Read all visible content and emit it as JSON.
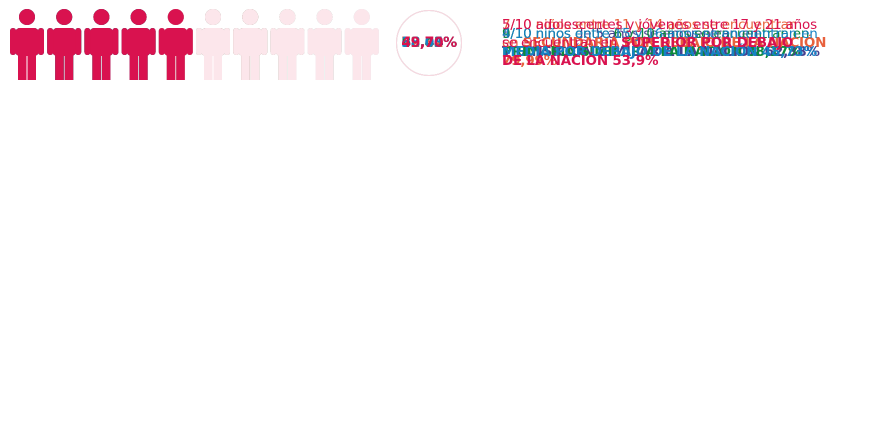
{
  "rows": [
    {
      "percent": "63,44%",
      "color": "#463f8f",
      "ring": "#c9c6e2",
      "icons": [
        "#463f8f",
        "#463f8f",
        "#463f8f",
        "#463f8f",
        "#463f8f",
        "#463f8f",
        "#7d78b7",
        "#c3c0de",
        "#c3c0de",
        "#c3c0de"
      ],
      "lines": [
        [
          {
            "normal": "6/10 niños de 5 años se encuentran en"
          }
        ],
        [
          {
            "strong": "TRANSICIÓN SIMILAR A LA NACIÓN 62,38%"
          }
        ]
      ]
    },
    {
      "percent": "88,43%",
      "color": "#0d8a3c",
      "ring": "#c6e3cd",
      "icons": [
        "#0d8a3c",
        "#0d8a3c",
        "#0d8a3c",
        "#0d8a3c",
        "#0d8a3c",
        "#0d8a3c",
        "#0d8a3c",
        "#0d8a3c",
        "#0d8a3c",
        "#c6e3cd"
      ],
      "lines": [
        [
          {
            "normal": "9/10 niños entre 6 y 10 años se encuentran en"
          }
        ],
        [
          {
            "strong": "PRIMARIA SIMILAR A LA NACIÓN 88,17%"
          }
        ]
      ]
    },
    {
      "percent": "72,82%",
      "color": "#e8613d",
      "ring": "#f8d9ce",
      "icons": [
        "#e8613d",
        "#e8613d",
        "#e8613d",
        "#e8613d",
        "#e8613d",
        "#e8613d",
        "#e8613d",
        "#f3b097",
        "#fdebe5",
        "#fdebe5"
      ],
      "lines": [
        [
          {
            "normal": "7/10 niños entre 11 y 14 años se encuentran"
          }
        ],
        [
          {
            "normal": "en "
          },
          {
            "strong": "SECUNDARIA POR DEBAJO DE LA NACIÓN"
          }
        ],
        [
          {
            "strong": "79,99%"
          }
        ]
      ]
    },
    {
      "percent": "38,03%",
      "color": "#1682c4",
      "ring": "#dde8f3",
      "icons": [
        "#1682c4",
        "#1682c4",
        "#1682c4",
        "#1682c4",
        "#e5eef8",
        "#e5eef8",
        "#e5eef8",
        "#e5eef8",
        "#e5eef8",
        "#e5eef8"
      ],
      "lines": [
        [
          {
            "normal": "4/10 niños entre 15 y 16 años se encuentran en"
          }
        ],
        [
          {
            "strong": "MEDIA POR DEBAJO DE LA NACIÓN 48,73%"
          }
        ]
      ]
    },
    {
      "percent": "49,70%",
      "color": "#d9124f",
      "ring": "#f8d7df",
      "icons": [
        "#d9124f",
        "#d9124f",
        "#d9124f",
        "#d9124f",
        "#d9124f",
        "#fce6eb",
        "#fce6eb",
        "#fce6eb",
        "#fce6eb",
        "#fce6eb"
      ],
      "lines": [
        [
          {
            "normal": "5/10 adolescentes y jóvenes entre 17 y 21 años"
          }
        ],
        [
          {
            "normal": "se encuentran en "
          },
          {
            "strong": "SUPERIOR POR DEBAJO"
          }
        ],
        [
          {
            "strong": "DE LA NACIÓN 53,9%"
          }
        ]
      ]
    }
  ]
}
